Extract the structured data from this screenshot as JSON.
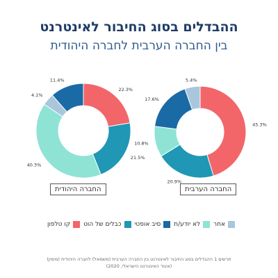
{
  "title": "ההבדלים בסוג החיבור לאינטרנט",
  "subtitle": "בין החברה הערבית לחברה היהודית",
  "chart_data": [
    {
      "type": "pie",
      "name": "החברה הערבית",
      "categories": [
        "קו טלפון",
        "כבלים של הוט",
        "סיב אופטי",
        "לא יודע/ת",
        "אחר"
      ],
      "values": [
        45.3,
        20.9,
        17.6,
        10.8,
        5.4
      ],
      "labels": [
        "45.3%",
        "20.9%",
        "17.6%",
        "10.8%",
        "5.4%"
      ]
    },
    {
      "type": "pie",
      "name": "החברה היהודית",
      "categories": [
        "קו טלפון",
        "כבלים של הוט",
        "סיב אופטי",
        "לא יודע/ת",
        "אחר"
      ],
      "values": [
        22.3,
        21.5,
        11.4,
        40.3,
        4.1
      ],
      "labels": [
        "22.3%",
        "21.5%",
        "11.4%",
        "40.3%",
        "4.1%"
      ]
    }
  ],
  "legend": {
    "items": [
      {
        "label": "קו טלפון",
        "color": "#f2666a"
      },
      {
        "label": "כבלים של הוט",
        "color": "#1f97b5"
      },
      {
        "label": "סיב אופטי",
        "color": "#1a6aa6"
      },
      {
        "label": "לא יודע/ת",
        "color": "#8ee3d4"
      },
      {
        "label": "אחר",
        "color": "#a9c6dc"
      }
    ]
  },
  "caption": {
    "line1": "תרשים 1 ההבדלים בסוג החיבור לאינטרנט בין החברה הערבית (משמאל) לחברה היהודית (מימין)",
    "line2": "(איגוד האינטרנט הישראלי, 2020)"
  }
}
